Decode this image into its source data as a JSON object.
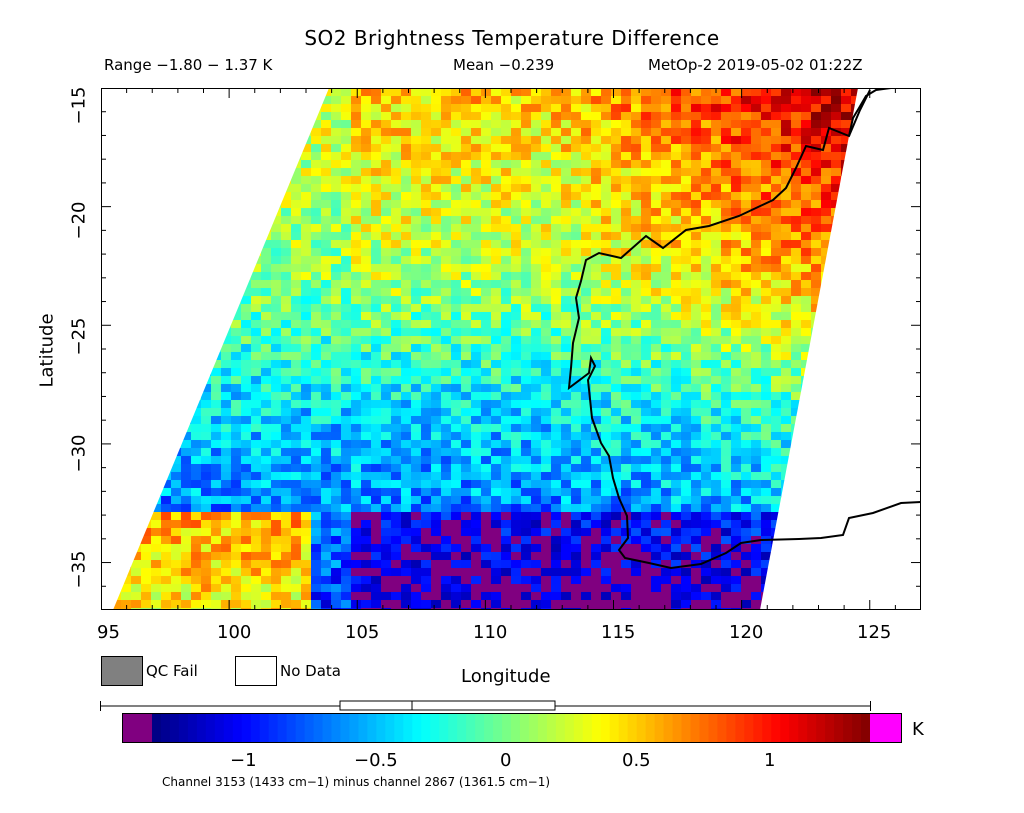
{
  "header": {
    "title": "SO2 Brightness Temperature Difference",
    "range": "Range −1.80 − 1.37 K",
    "mean": "Mean −0.239",
    "satellite_time": "MetOp-2 2019-05-02 01:22Z"
  },
  "axes": {
    "xlabel": "Longitude",
    "ylabel": "Latitude",
    "x_ticks": [
      "95",
      "100",
      "105",
      "110",
      "115",
      "120",
      "125"
    ],
    "y_ticks": [
      "−15",
      "−20",
      "−25",
      "−30",
      "−35"
    ],
    "xlim": [
      95,
      127
    ],
    "ylim": [
      -37,
      -15
    ]
  },
  "legend": {
    "qc_fail": "QC Fail",
    "no_data": "No Data",
    "qc_fail_color": "#808080",
    "no_data_color": "#ffffff"
  },
  "colorbar": {
    "unit": "K",
    "ticks": [
      "−1",
      "−0.5",
      "0",
      "0.5",
      "1"
    ],
    "range": [
      -1.4,
      1.4
    ],
    "under_color": "#800080",
    "over_color": "#ff00ff"
  },
  "footer": {
    "note": "Channel 3153 (1433 cm−1) minus channel 2867 (1361.5 cm−1)"
  },
  "map": {
    "coastline_color": "#000000",
    "swath_description_colors": [
      "#00008b",
      "#0000ff",
      "#00bfff",
      "#7fff7f",
      "#ffff00",
      "#ff8000",
      "#ff0000",
      "#8b0000"
    ]
  }
}
